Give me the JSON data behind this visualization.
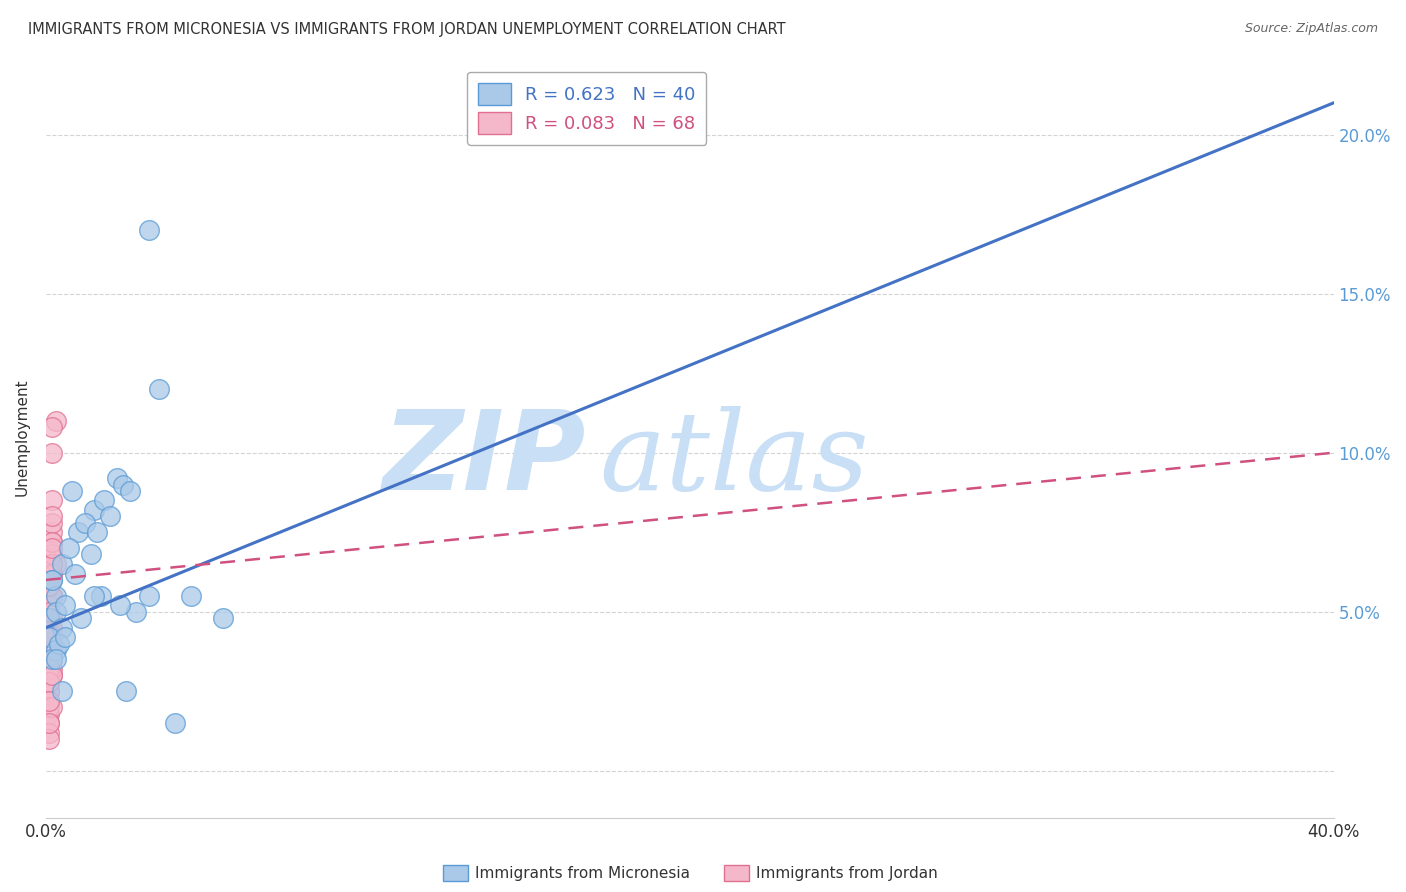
{
  "title": "IMMIGRANTS FROM MICRONESIA VS IMMIGRANTS FROM JORDAN UNEMPLOYMENT CORRELATION CHART",
  "source": "Source: ZipAtlas.com",
  "ylabel": "Unemployment",
  "xlim": [
    0.0,
    0.4
  ],
  "ylim": [
    -0.015,
    0.225
  ],
  "right_yticks": [
    0.05,
    0.1,
    0.15,
    0.2
  ],
  "right_yticklabels": [
    "5.0%",
    "10.0%",
    "15.0%",
    "20.0%"
  ],
  "xticks": [
    0.0,
    0.1,
    0.2,
    0.3,
    0.4
  ],
  "xticklabels_show": [
    "0.0%",
    "",
    "",
    "",
    "40.0%"
  ],
  "micronesia_color": "#aac9e8",
  "jordan_color": "#f5b8cb",
  "micronesia_edge": "#5b9bd5",
  "jordan_edge": "#e07090",
  "trend_micronesia_color": "#4472c4",
  "trend_jordan_color": "#d05080",
  "watermark_zip": "ZIP",
  "watermark_atlas": "atlas",
  "watermark_color_zip": "#c8dff5",
  "watermark_color_atlas": "#c8dff5",
  "background_color": "#ffffff",
  "grid_color": "#d0d0d0",
  "micronesia_x": [
    0.002,
    0.032,
    0.005,
    0.003,
    0.001,
    0.01,
    0.015,
    0.022,
    0.008,
    0.018,
    0.012,
    0.016,
    0.024,
    0.003,
    0.007,
    0.028,
    0.006,
    0.005,
    0.02,
    0.001,
    0.003,
    0.009,
    0.014,
    0.026,
    0.002,
    0.017,
    0.045,
    0.004,
    0.023,
    0.011,
    0.006,
    0.032,
    0.005,
    0.002,
    0.035,
    0.055,
    0.003,
    0.025,
    0.04,
    0.015
  ],
  "micronesia_y": [
    0.06,
    0.17,
    0.065,
    0.055,
    0.048,
    0.075,
    0.082,
    0.092,
    0.088,
    0.085,
    0.078,
    0.075,
    0.09,
    0.05,
    0.07,
    0.05,
    0.052,
    0.045,
    0.08,
    0.042,
    0.038,
    0.062,
    0.068,
    0.088,
    0.035,
    0.055,
    0.055,
    0.04,
    0.052,
    0.048,
    0.042,
    0.055,
    0.025,
    0.06,
    0.12,
    0.048,
    0.035,
    0.025,
    0.015,
    0.055
  ],
  "jordan_x": [
    0.001,
    0.003,
    0.001,
    0.002,
    0.001,
    0.002,
    0.001,
    0.002,
    0.003,
    0.001,
    0.001,
    0.002,
    0.002,
    0.001,
    0.001,
    0.002,
    0.001,
    0.002,
    0.001,
    0.002,
    0.001,
    0.001,
    0.002,
    0.001,
    0.002,
    0.001,
    0.001,
    0.002,
    0.001,
    0.002,
    0.001,
    0.001,
    0.002,
    0.001,
    0.001,
    0.002,
    0.001,
    0.002,
    0.001,
    0.002,
    0.001,
    0.001,
    0.002,
    0.001,
    0.002,
    0.001,
    0.001,
    0.002,
    0.001,
    0.002,
    0.001,
    0.001,
    0.002,
    0.002,
    0.001,
    0.001,
    0.002,
    0.001,
    0.002,
    0.001,
    0.001,
    0.002,
    0.001,
    0.002,
    0.001,
    0.002,
    0.001,
    0.001
  ],
  "jordan_y": [
    0.055,
    0.11,
    0.062,
    0.1,
    0.058,
    0.108,
    0.045,
    0.062,
    0.065,
    0.048,
    0.052,
    0.072,
    0.075,
    0.038,
    0.042,
    0.085,
    0.035,
    0.078,
    0.04,
    0.055,
    0.032,
    0.065,
    0.068,
    0.048,
    0.072,
    0.05,
    0.03,
    0.08,
    0.045,
    0.055,
    0.028,
    0.058,
    0.04,
    0.052,
    0.035,
    0.062,
    0.025,
    0.048,
    0.022,
    0.038,
    0.042,
    0.018,
    0.03,
    0.025,
    0.032,
    0.015,
    0.028,
    0.035,
    0.02,
    0.045,
    0.038,
    0.012,
    0.055,
    0.042,
    0.032,
    0.048,
    0.038,
    0.028,
    0.02,
    0.01,
    0.058,
    0.065,
    0.05,
    0.03,
    0.022,
    0.07,
    0.042,
    0.015
  ],
  "mic_trend_x0": 0.0,
  "mic_trend_y0": 0.045,
  "mic_trend_x1": 0.4,
  "mic_trend_y1": 0.21,
  "jor_trend_x0": 0.0,
  "jor_trend_y0": 0.06,
  "jor_trend_x1": 0.4,
  "jor_trend_y1": 0.1,
  "legend_label_mic": "R = 0.623   N = 40",
  "legend_label_jor": "R = 0.083   N = 68",
  "legend_text_color_mic": "#4472c4",
  "legend_text_color_jor": "#d05080"
}
